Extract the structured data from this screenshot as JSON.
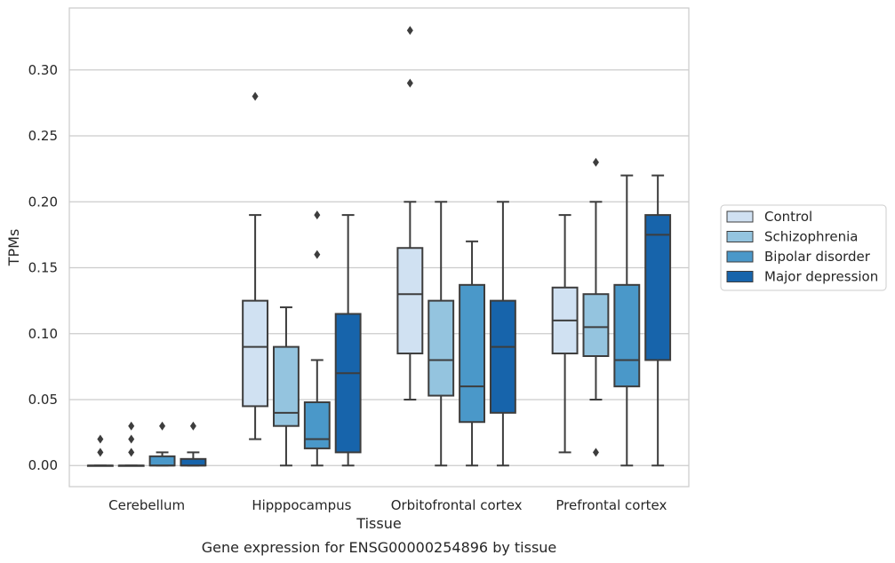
{
  "chart_data": {
    "type": "box",
    "xlabel": "Tissue",
    "ylabel": "TPMs",
    "caption": "Gene expression for ENSG00000254896 by tissue",
    "ylim": [
      -0.016,
      0.347
    ],
    "yticks": [
      "0.00",
      "0.05",
      "0.10",
      "0.15",
      "0.20",
      "0.25",
      "0.30"
    ],
    "grid": true,
    "legend_position": "right",
    "categories": [
      "Cerebellum",
      "Hipppocampus",
      "Orbitofrontal cortex",
      "Prefrontal cortex"
    ],
    "series": [
      {
        "name": "Control",
        "color": "#d0e1f2",
        "boxes": [
          {
            "whislo": 0.0,
            "q1": 0.0,
            "med": 0.0,
            "q3": 0.0,
            "whishi": 0.0,
            "fliers": [
              0.01,
              0.02
            ]
          },
          {
            "whislo": 0.02,
            "q1": 0.045,
            "med": 0.09,
            "q3": 0.125,
            "whishi": 0.19,
            "fliers": [
              0.28
            ]
          },
          {
            "whislo": 0.05,
            "q1": 0.085,
            "med": 0.13,
            "q3": 0.165,
            "whishi": 0.2,
            "fliers": [
              0.29,
              0.33
            ]
          },
          {
            "whislo": 0.01,
            "q1": 0.085,
            "med": 0.11,
            "q3": 0.135,
            "whishi": 0.19,
            "fliers": []
          }
        ]
      },
      {
        "name": "Schizophrenia",
        "color": "#94c4df",
        "boxes": [
          {
            "whislo": 0.0,
            "q1": 0.0,
            "med": 0.0,
            "q3": 0.0,
            "whishi": 0.0,
            "fliers": [
              0.01,
              0.02,
              0.03
            ]
          },
          {
            "whislo": 0.0,
            "q1": 0.03,
            "med": 0.04,
            "q3": 0.09,
            "whishi": 0.12,
            "fliers": []
          },
          {
            "whislo": 0.0,
            "q1": 0.053,
            "med": 0.08,
            "q3": 0.125,
            "whishi": 0.2,
            "fliers": []
          },
          {
            "whislo": 0.05,
            "q1": 0.083,
            "med": 0.105,
            "q3": 0.13,
            "whishi": 0.2,
            "fliers": [
              0.01,
              0.23
            ]
          }
        ]
      },
      {
        "name": "Bipolar disorder",
        "color": "#4a98c9",
        "boxes": [
          {
            "whislo": 0.0,
            "q1": 0.0,
            "med": 0.0,
            "q3": 0.007,
            "whishi": 0.01,
            "fliers": [
              0.03
            ]
          },
          {
            "whislo": 0.0,
            "q1": 0.013,
            "med": 0.02,
            "q3": 0.048,
            "whishi": 0.08,
            "fliers": [
              0.16,
              0.19
            ]
          },
          {
            "whislo": 0.0,
            "q1": 0.033,
            "med": 0.06,
            "q3": 0.137,
            "whishi": 0.17,
            "fliers": []
          },
          {
            "whislo": 0.0,
            "q1": 0.06,
            "med": 0.08,
            "q3": 0.137,
            "whishi": 0.22,
            "fliers": []
          }
        ]
      },
      {
        "name": "Major depression",
        "color": "#1764ab",
        "boxes": [
          {
            "whislo": 0.0,
            "q1": 0.0,
            "med": 0.0,
            "q3": 0.005,
            "whishi": 0.01,
            "fliers": [
              0.03
            ]
          },
          {
            "whislo": 0.0,
            "q1": 0.01,
            "med": 0.07,
            "q3": 0.115,
            "whishi": 0.19,
            "fliers": []
          },
          {
            "whislo": 0.0,
            "q1": 0.04,
            "med": 0.09,
            "q3": 0.125,
            "whishi": 0.2,
            "fliers": []
          },
          {
            "whislo": 0.0,
            "q1": 0.08,
            "med": 0.175,
            "q3": 0.19,
            "whishi": 0.22,
            "fliers": []
          }
        ]
      }
    ]
  }
}
